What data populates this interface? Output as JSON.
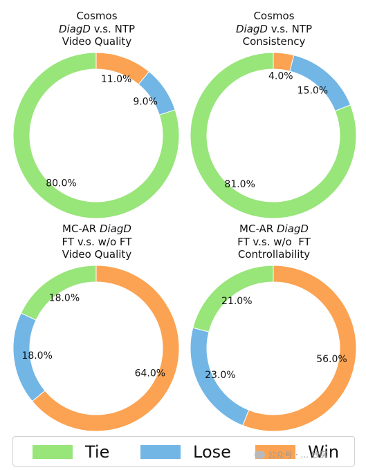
{
  "colors": {
    "Tie": "#98e57a",
    "Lose": "#72b6e6",
    "Win": "#fba352"
  },
  "legend": [
    {
      "label": "Tie",
      "color": "#98e57a"
    },
    {
      "label": "Lose",
      "color": "#72b6e6"
    },
    {
      "label": "Win",
      "color": "#fba352"
    }
  ],
  "watermark": {
    "text": "公众号 · ... 妙房"
  },
  "chart_data": [
    {
      "type": "pie",
      "title_lines": [
        [
          "Cosmos"
        ],
        [
          "DiagD",
          " v.s. NTP"
        ],
        [
          "Video Quality"
        ]
      ],
      "categories": [
        "Win",
        "Lose",
        "Tie"
      ],
      "values": [
        11.0,
        9.0,
        80.0
      ],
      "labels": [
        "11.0%",
        "9.0%",
        "80.0%"
      ],
      "start": "top",
      "direction": "clockwise",
      "hole": "donut"
    },
    {
      "type": "pie",
      "title_lines": [
        [
          "Cosmos"
        ],
        [
          "DiagD",
          " v.s. NTP"
        ],
        [
          "Consistency"
        ]
      ],
      "categories": [
        "Win",
        "Lose",
        "Tie"
      ],
      "values": [
        4.0,
        15.0,
        81.0
      ],
      "labels": [
        "4.0%",
        "15.0%",
        "81.0%"
      ],
      "start": "top",
      "direction": "clockwise",
      "hole": "donut"
    },
    {
      "type": "pie",
      "title_lines": [
        [
          "MC-AR ",
          "DiagD"
        ],
        [
          "FT v.s. w/o FT"
        ],
        [
          "Video Quality"
        ]
      ],
      "categories": [
        "Win",
        "Lose",
        "Tie"
      ],
      "values": [
        64.0,
        18.0,
        18.0
      ],
      "labels": [
        "64.0%",
        "18.0%",
        "18.0%"
      ],
      "start": "top",
      "direction": "clockwise",
      "hole": "donut"
    },
    {
      "type": "pie",
      "title_lines": [
        [
          "MC-AR ",
          "DiagD"
        ],
        [
          "FT v.s. w/o  FT"
        ],
        [
          "Controllability"
        ]
      ],
      "categories": [
        "Win",
        "Lose",
        "Tie"
      ],
      "values": [
        56.0,
        23.0,
        21.0
      ],
      "labels": [
        "56.0%",
        "23.0%",
        "21.0%"
      ],
      "start": "top",
      "direction": "clockwise",
      "hole": "donut"
    }
  ]
}
